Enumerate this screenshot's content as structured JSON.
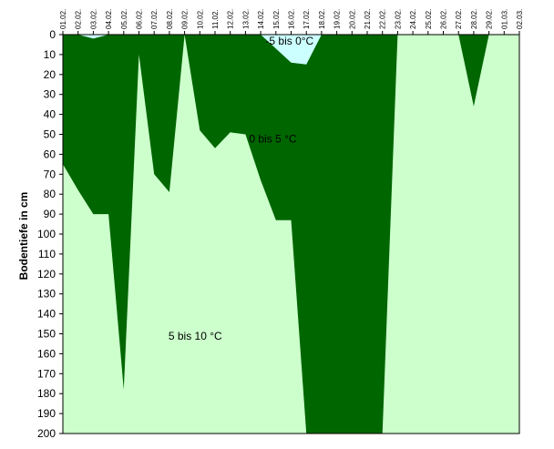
{
  "chart_data": {
    "type": "area",
    "ylabel": "Bodentiefe in cm",
    "x_labels": [
      "01.02.",
      "02.02.",
      "03.02.",
      "04.02.",
      "05.02.",
      "06.02.",
      "07.02.",
      "08.02.",
      "09.02.",
      "10.02.",
      "11.02.",
      "12.02.",
      "13.02.",
      "14.02.",
      "15.02.",
      "16.02.",
      "17.02.",
      "18.02.",
      "19.02.",
      "20.02.",
      "21.02.",
      "22.02.",
      "23.02.",
      "24.02.",
      "25.02.",
      "26.02.",
      "27.02.",
      "28.02.",
      "29.02.",
      "01.03.",
      "02.03."
    ],
    "y_ticks": [
      0,
      10,
      20,
      30,
      40,
      50,
      60,
      70,
      80,
      90,
      100,
      110,
      120,
      130,
      140,
      150,
      160,
      170,
      180,
      190,
      200
    ],
    "ylim": [
      0,
      200
    ],
    "y_inverted": true,
    "grid": false,
    "zones": [
      {
        "name": "5 bis 10 °C",
        "color": "#ccffcc"
      },
      {
        "name": "0 bis 5 °C",
        "color": "#006600"
      },
      {
        "name": "-5 bis 0°C",
        "color": "#ccffff"
      }
    ],
    "boundary_0C_depth": [
      {
        "x": 0,
        "y": 0
      },
      {
        "x": 1,
        "y": 0
      },
      {
        "x": 2,
        "y": 2
      },
      {
        "x": 3,
        "y": 0
      },
      {
        "x": 13,
        "y": 0
      },
      {
        "x": 15,
        "y": 14
      },
      {
        "x": 16,
        "y": 15
      },
      {
        "x": 17,
        "y": 0
      }
    ],
    "boundary_5C_depth": [
      {
        "x": 0,
        "y": 65
      },
      {
        "x": 1,
        "y": 78
      },
      {
        "x": 2,
        "y": 90
      },
      {
        "x": 3,
        "y": 90
      },
      {
        "x": 4,
        "y": 178
      },
      {
        "x": 5,
        "y": 10
      },
      {
        "x": 6,
        "y": 70
      },
      {
        "x": 7,
        "y": 79
      },
      {
        "x": 8,
        "y": 0
      },
      {
        "x": 9,
        "y": 48
      },
      {
        "x": 10,
        "y": 57
      },
      {
        "x": 11,
        "y": 49
      },
      {
        "x": 12,
        "y": 50
      },
      {
        "x": 13,
        "y": 73
      },
      {
        "x": 14,
        "y": 93
      },
      {
        "x": 15,
        "y": 93
      },
      {
        "x": 16,
        "y": 200
      },
      {
        "x": 21,
        "y": 200
      },
      {
        "x": 22,
        "y": 0
      },
      {
        "x": 26,
        "y": 0
      },
      {
        "x": 27,
        "y": 36
      },
      {
        "x": 28,
        "y": 0
      },
      {
        "x": 30,
        "y": 0
      }
    ],
    "annotations": [
      "0 bis 5 °C",
      "5 bis 10 °C",
      "-5 bis 0°C"
    ]
  }
}
